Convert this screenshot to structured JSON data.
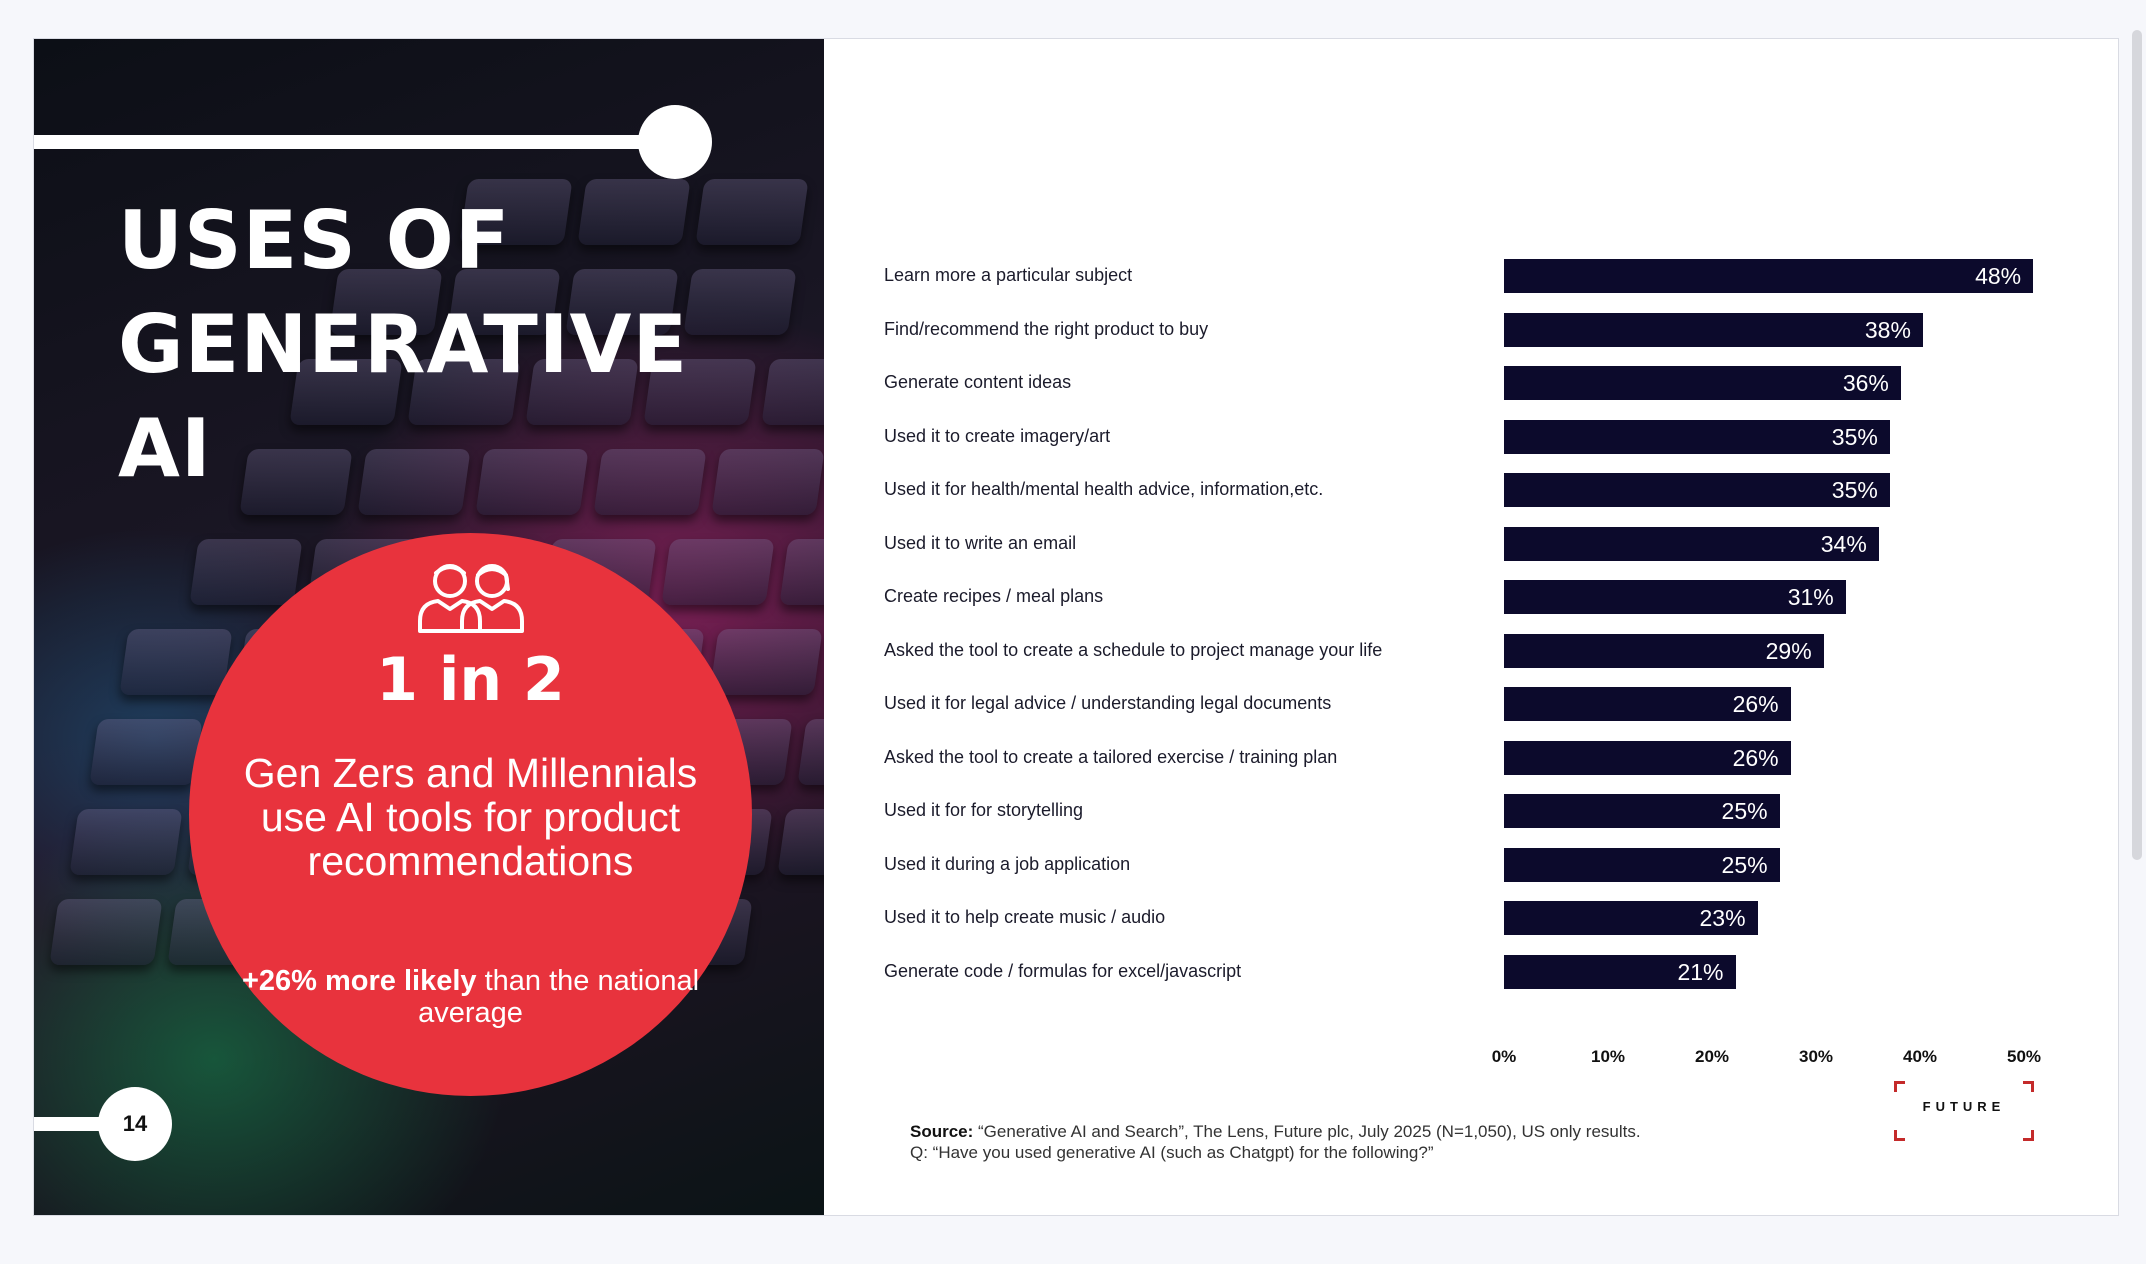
{
  "left": {
    "title_lines": [
      "USES OF",
      "GENERATIVE",
      "AI"
    ],
    "stat": "1 in 2",
    "description": "Gen Zers and Millennials use AI tools for product recommendations",
    "likely_bold": "+26% more likely",
    "likely_rest": " than the national average",
    "page_number": "14",
    "accent_color": "#e8333d"
  },
  "chart_data": {
    "type": "bar",
    "orientation": "horizontal",
    "categories": [
      "Learn more a particular subject",
      "Find/recommend the right product to buy",
      "Generate content ideas",
      "Used it to create imagery/art",
      "Used it for health/mental health advice, information,etc.",
      "Used it to write an email",
      "Create recipes / meal plans",
      "Asked the tool to create a schedule to project manage your life",
      "Used it for legal advice / understanding legal documents",
      "Asked the tool to create a tailored exercise / training plan",
      "Used it for for storytelling",
      "Used it during a job application",
      "Used it to help create music / audio",
      "Generate code / formulas for excel/javascript"
    ],
    "values": [
      48,
      38,
      36,
      35,
      35,
      34,
      31,
      29,
      26,
      26,
      25,
      25,
      23,
      21
    ],
    "value_labels": [
      "48%",
      "38%",
      "36%",
      "35%",
      "35%",
      "34%",
      "31%",
      "29%",
      "26%",
      "26%",
      "25%",
      "25%",
      "23%",
      "21%"
    ],
    "x_ticks": [
      "0%",
      "10%",
      "20%",
      "30%",
      "40%",
      "50%"
    ],
    "xlim": [
      0,
      50
    ],
    "bar_color": "#0c0a2c",
    "grid": false
  },
  "source": {
    "label": "Source:",
    "text": " “Generative AI and Search”, The Lens, Future plc, July 2025 (N=1,050), US only results.",
    "question": "Q: “Have you used generative AI (such as Chatgpt) for the following?”"
  },
  "logo": {
    "text": "FUTURE",
    "accent": "#c42a2a"
  }
}
